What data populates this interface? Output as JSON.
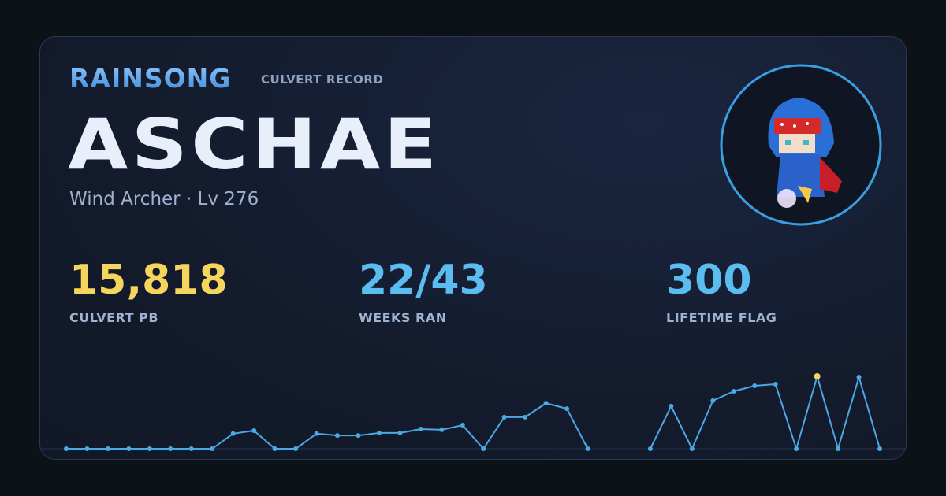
{
  "header": {
    "brand": "RAINSONG",
    "tag": "CULVERT RECORD"
  },
  "character": {
    "name": "ASCHAE",
    "subtitle": "Wind Archer · Lv 276"
  },
  "stats": [
    {
      "value": "15,818",
      "label": "CULVERT PB",
      "color": "#f6d55c"
    },
    {
      "value": "22/43",
      "label": "WEEKS RAN",
      "color": "#5bbcf0"
    },
    {
      "value": "300",
      "label": "LIFETIME FLAG",
      "color": "#5bbcf0"
    }
  ],
  "chart_data": {
    "type": "line",
    "color": "#4aa8e4",
    "highlight_color": "#f6d55c",
    "values": [
      0,
      0,
      0,
      0,
      0,
      0,
      0,
      0,
      3300,
      3950,
      0,
      0,
      3300,
      2900,
      2900,
      3450,
      3450,
      4300,
      4150,
      5150,
      0,
      6900,
      6900,
      9950,
      8750,
      0,
      null,
      null,
      0,
      9300,
      0,
      10500,
      12550,
      13750,
      14100,
      0,
      15818,
      0,
      15650,
      0
    ]
  }
}
